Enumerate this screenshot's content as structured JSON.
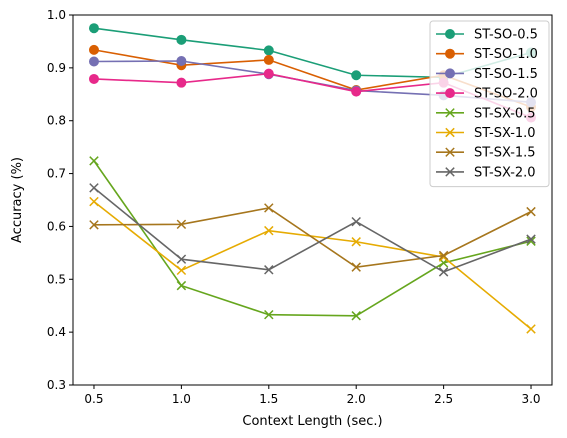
{
  "chart_data": {
    "type": "line",
    "title": "",
    "xlabel": "Context Length (sec.)",
    "ylabel": "Accuracy (%)",
    "x": [
      0.5,
      1.0,
      1.5,
      2.0,
      2.5,
      3.0
    ],
    "xticks": [
      "0.5",
      "1.0",
      "1.5",
      "2.0",
      "2.5",
      "3.0"
    ],
    "yticks": [
      "0.3",
      "0.4",
      "0.5",
      "0.6",
      "0.7",
      "0.8",
      "0.9",
      "1.0"
    ],
    "xlim": [
      0.38,
      3.12
    ],
    "ylim": [
      0.3,
      1.0
    ],
    "grid": false,
    "legend_position": "top-right",
    "series": [
      {
        "name": "ST-SO-0.5",
        "marker": "circle",
        "color": "#1b9e77",
        "values": [
          0.975,
          0.953,
          0.933,
          0.886,
          0.882,
          0.929
        ]
      },
      {
        "name": "ST-SO-1.0",
        "marker": "circle",
        "color": "#d95f02",
        "values": [
          0.934,
          0.905,
          0.915,
          0.858,
          0.886,
          0.826
        ]
      },
      {
        "name": "ST-SO-1.5",
        "marker": "circle",
        "color": "#7570b3",
        "values": [
          0.912,
          0.913,
          0.888,
          0.857,
          0.848,
          0.835
        ]
      },
      {
        "name": "ST-SO-2.0",
        "marker": "circle",
        "color": "#e7298a",
        "values": [
          0.879,
          0.872,
          0.889,
          0.855,
          0.872,
          0.806
        ]
      },
      {
        "name": "ST-SX-0.5",
        "marker": "x",
        "color": "#66a61e",
        "values": [
          0.724,
          0.488,
          0.433,
          0.431,
          0.531,
          0.572
        ]
      },
      {
        "name": "ST-SX-1.0",
        "marker": "x",
        "color": "#e6ab02",
        "values": [
          0.647,
          0.517,
          0.592,
          0.571,
          0.542,
          0.406
        ]
      },
      {
        "name": "ST-SX-1.5",
        "marker": "x",
        "color": "#a6761d",
        "values": [
          0.603,
          0.604,
          0.635,
          0.523,
          0.545,
          0.628
        ]
      },
      {
        "name": "ST-SX-2.0",
        "marker": "x",
        "color": "#666666",
        "values": [
          0.673,
          0.538,
          0.518,
          0.609,
          0.514,
          0.576
        ]
      }
    ]
  }
}
